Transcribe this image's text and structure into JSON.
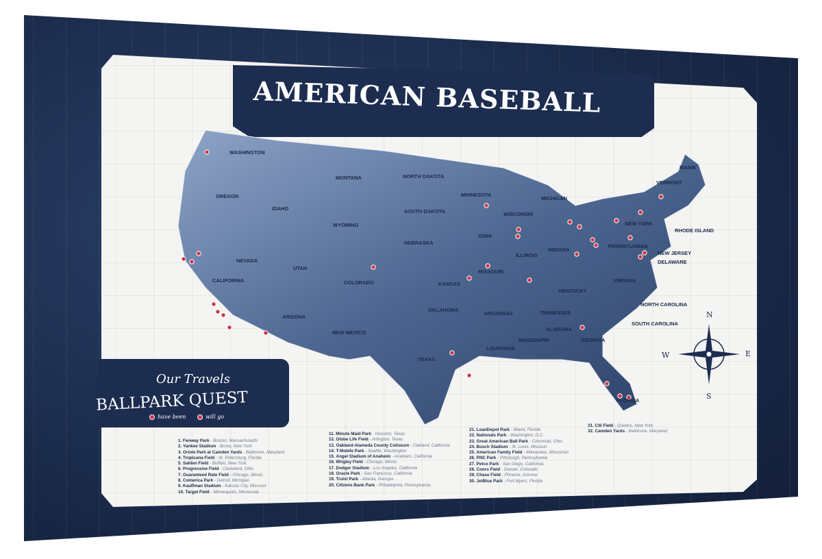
{
  "title": "AMERICAN BASEBALL",
  "quest": {
    "subtitle": "Our Travels",
    "title": "BALLPARK QUEST",
    "legend_been": "have been",
    "legend_will": "will go"
  },
  "colors": {
    "navy": "#1c2d50",
    "pin": "#c9384a",
    "paper": "#f4f4f2"
  },
  "compass": {
    "n": "N",
    "e": "E",
    "s": "S",
    "w": "W"
  },
  "states": [
    "WASHINGTON",
    "OREGON",
    "CALIFORNIA",
    "NEVADA",
    "IDAHO",
    "MONTANA",
    "WYOMING",
    "UTAH",
    "ARIZONA",
    "COLORADO",
    "NEW MEXICO",
    "NORTH DAKOTA",
    "SOUTH DAKOTA",
    "NEBRASKA",
    "KANSAS",
    "OKLAHOMA",
    "TEXAS",
    "MINNESOTA",
    "IOWA",
    "MISSOURI",
    "ARKANSAS",
    "LOUISIANA",
    "WISCONSIN",
    "ILLINOIS",
    "MICHIGAN",
    "INDIANA",
    "KENTUCKY",
    "TENNESSEE",
    "MISSISSIPPI",
    "ALABAMA",
    "GEORGIA",
    "FLORIDA",
    "SOUTH CAROLINA",
    "NORTH CAROLINA",
    "VIRGINIA",
    "PENNSYLVANIA",
    "NEW YORK",
    "MAINE",
    "VERMONT",
    "NEW JERSEY",
    "DELAWARE",
    "RHODE ISLAND"
  ],
  "ballparks": [
    {
      "num": "1.",
      "name": "Fenway Park",
      "loc": "Boston, Massachusetts"
    },
    {
      "num": "2.",
      "name": "Yankee Stadium",
      "loc": "Bronx, New York"
    },
    {
      "num": "3.",
      "name": "Oriole Park at Camden Yards",
      "loc": "Baltimore, Maryland"
    },
    {
      "num": "4.",
      "name": "Tropicana Field",
      "loc": "St. Petersburg, Florida"
    },
    {
      "num": "5.",
      "name": "Sahlen Field",
      "loc": "Buffalo, New York"
    },
    {
      "num": "6.",
      "name": "Progressive Field",
      "loc": "Cleveland, Ohio"
    },
    {
      "num": "7.",
      "name": "Guaranteed Rate Field",
      "loc": "Chicago, Illinois"
    },
    {
      "num": "8.",
      "name": "Comerica Park",
      "loc": "Detroit, Michigan"
    },
    {
      "num": "9.",
      "name": "Kauffman Stadium",
      "loc": "Kansas City, Missouri"
    },
    {
      "num": "10.",
      "name": "Target Field",
      "loc": "Minneapolis, Minnesota"
    },
    {
      "num": "11.",
      "name": "Minute Maid Park",
      "loc": "Houston, Texas"
    },
    {
      "num": "12.",
      "name": "Globe Life Field",
      "loc": "Arlington, Texas"
    },
    {
      "num": "13.",
      "name": "Oakland-Alameda County Coliseum",
      "loc": "Oakland, California"
    },
    {
      "num": "14.",
      "name": "T-Mobile Park",
      "loc": "Seattle, Washington"
    },
    {
      "num": "15.",
      "name": "Angel Stadium of Anaheim",
      "loc": "Anaheim, California"
    },
    {
      "num": "16.",
      "name": "Wrigley Field",
      "loc": "Chicago, Illinois"
    },
    {
      "num": "17.",
      "name": "Dodger Stadium",
      "loc": "Los Angeles, California"
    },
    {
      "num": "18.",
      "name": "Oracle Park",
      "loc": "San Francisco, California"
    },
    {
      "num": "19.",
      "name": "Truist Park",
      "loc": "Atlanta, Georgia"
    },
    {
      "num": "20.",
      "name": "Citizens Bank Park",
      "loc": "Philadelphia, Pennsylvania"
    },
    {
      "num": "21.",
      "name": "LoanDepot Park",
      "loc": "Miami, Florida"
    },
    {
      "num": "22.",
      "name": "Nationals Park",
      "loc": "Washington, D.C."
    },
    {
      "num": "23.",
      "name": "Great American Ball Park",
      "loc": "Cincinnati, Ohio"
    },
    {
      "num": "24.",
      "name": "Busch Stadium",
      "loc": "St. Louis, Missouri"
    },
    {
      "num": "25.",
      "name": "American Family Field",
      "loc": "Milwaukee, Wisconsin"
    },
    {
      "num": "26.",
      "name": "PNC Park",
      "loc": "Pittsburgh, Pennsylvania"
    },
    {
      "num": "27.",
      "name": "Petco Park",
      "loc": "San Diego, California"
    },
    {
      "num": "28.",
      "name": "Coors Field",
      "loc": "Denver, Colorado"
    },
    {
      "num": "29.",
      "name": "Chase Field",
      "loc": "Phoenix, Arizona"
    },
    {
      "num": "30.",
      "name": "JetBlue Park",
      "loc": "Fort Myers, Florida"
    },
    {
      "num": "31.",
      "name": "Citi Field",
      "loc": "Queens, New York"
    },
    {
      "num": "32.",
      "name": "Camden Yards",
      "loc": "Baltimore, Maryland"
    }
  ]
}
